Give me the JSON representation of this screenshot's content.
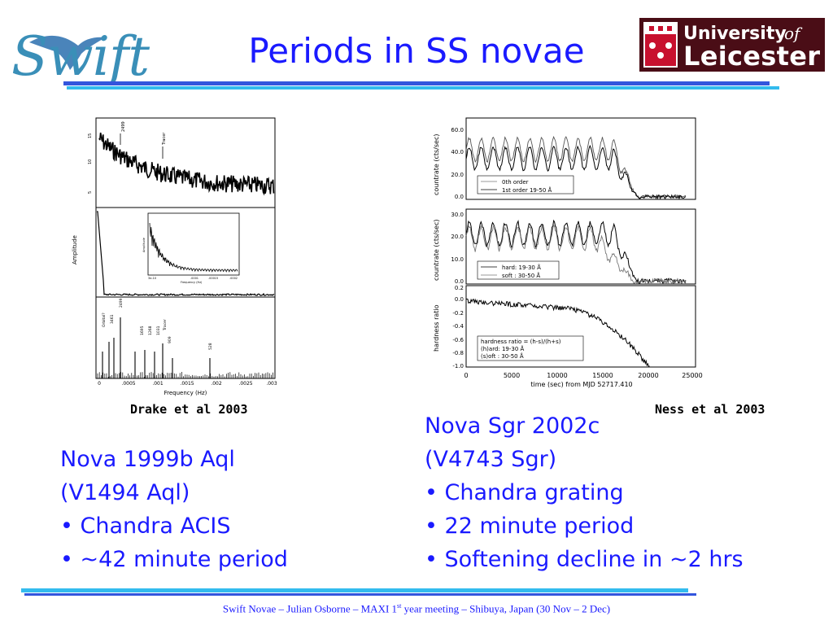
{
  "slide": {
    "title": "Periods in SS novae",
    "swift_logo": {
      "text": "Swift",
      "icon": "swift-bird-logo"
    },
    "uni_logo": {
      "line1": "University",
      "of": "of",
      "line2": "Leicester",
      "icon": "university-crest"
    },
    "colors": {
      "title": "#1a1aff",
      "rule_top": "#3355dd",
      "rule_bottom": "#33bbee",
      "logo_bg": "#4a0d16"
    }
  },
  "left": {
    "citation": "Drake et al 2003",
    "heading_lines": [
      "Nova 1999b Aql",
      "(V1494 Aql)"
    ],
    "bullets": [
      "Chandra ACIS",
      "~42 minute period"
    ],
    "figure": {
      "ylabel": "Amplitude",
      "xlabel": "Frequency (Hz)",
      "x_ticks": [
        "0",
        ".0005",
        ".001",
        ".0015",
        ".002",
        ".0025",
        ".003"
      ],
      "y_ticks_top": [
        "5",
        "10",
        "15"
      ],
      "panel1_labels": [
        "2499",
        "Tracer"
      ],
      "inset": {
        "ylabel": "Amplitude",
        "xlabel": "Frequency (Hz)",
        "x_ticks": [
          "3e-10",
          ".0001",
          ".00015",
          ".0002"
        ]
      },
      "panel3_labels": [
        "Orbital?",
        "3461",
        "2499",
        "1695",
        "1268",
        "1031",
        "Tracer",
        "909",
        "528"
      ]
    }
  },
  "right": {
    "citation": "Ness et al 2003",
    "heading_lines": [
      "Nova Sgr 2002c",
      "(V4743 Sgr)"
    ],
    "bullets": [
      "Chandra grating",
      "22 minute period",
      "Softening decline in ~2 hrs"
    ],
    "figure": {
      "x_ticks": [
        "0",
        "5000",
        "10000",
        "15000",
        "20000",
        "25000"
      ],
      "xlabel": "time (sec) from MJD 52717.410",
      "panel1": {
        "ylabel": "countrate (cts/sec)",
        "y_ticks": [
          "0.0",
          "20.0",
          "40.0",
          "60.0"
        ],
        "legend": [
          "0th order",
          "1st order 19-50 Å"
        ]
      },
      "panel2": {
        "ylabel": "countrate (cts/sec)",
        "y_ticks": [
          "0.0",
          "10.0",
          "20.0",
          "30.0"
        ],
        "legend": [
          "hard: 19-30 Å",
          "soft : 30-50 Å"
        ]
      },
      "panel3": {
        "ylabel": "hardness ratio",
        "y_ticks": [
          "0.2",
          "0.0",
          "-0.2",
          "-0.4",
          "-0.6",
          "-0.8",
          "-1.0"
        ],
        "legend": [
          "hardness ratio = (h-s)/(h+s)",
          "(h)ard: 19-30 Å",
          "(s)oft : 30-50 Å"
        ]
      }
    }
  },
  "footer": {
    "pre": "Swift Novae – Julian Osborne – MAXI 1",
    "sup": "st",
    "post": " year meeting – Shibuya, Japan (30 Nov – 2 Dec)"
  }
}
